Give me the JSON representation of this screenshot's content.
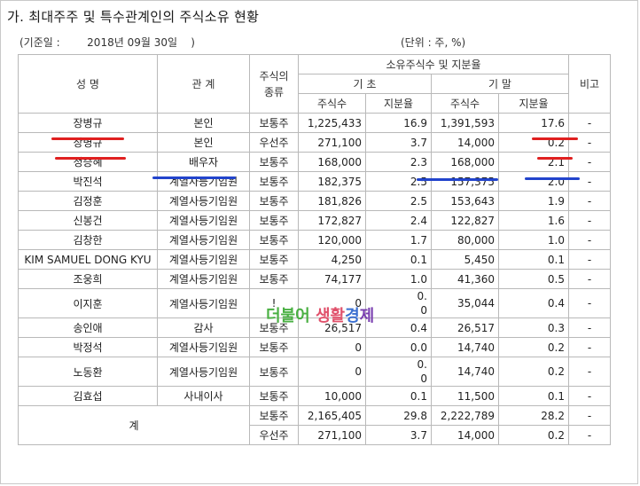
{
  "title": "가. 최대주주 및 특수관계인의 주식소유 현황",
  "base_date": "(기준일 :        2018년 09월 30일    )",
  "unit": "(단위 : 주, %)",
  "headers": {
    "name": "성 명",
    "relation": "관 계",
    "stock_type": "주식의\n종류",
    "holdings": "소유주식수 및 지분율",
    "beginning": "기 초",
    "ending": "기 말",
    "shares": "주식수",
    "ratio": "지분율",
    "note": "비고"
  },
  "rows": [
    {
      "name": "장병규",
      "relation": "본인",
      "type": "보통주",
      "b_shares": "1,225,433",
      "b_ratio": "16.9",
      "e_shares": "1,391,593",
      "e_ratio": "17.6",
      "note": "-"
    },
    {
      "name": "장병규",
      "relation": "본인",
      "type": "우선주",
      "b_shares": "271,100",
      "b_ratio": "3.7",
      "e_shares": "14,000",
      "e_ratio": "0.2",
      "note": "-"
    },
    {
      "name": "정승혜",
      "relation": "배우자",
      "type": "보통주",
      "b_shares": "168,000",
      "b_ratio": "2.3",
      "e_shares": "168,000",
      "e_ratio": "2.1",
      "note": "-"
    },
    {
      "name": "박진석",
      "relation": "계열사등기임원",
      "type": "보통주",
      "b_shares": "182,375",
      "b_ratio": "2.5",
      "e_shares": "157,375",
      "e_ratio": "2.0",
      "note": "-"
    },
    {
      "name": "김정훈",
      "relation": "계열사등기임원",
      "type": "보통주",
      "b_shares": "181,826",
      "b_ratio": "2.5",
      "e_shares": "153,643",
      "e_ratio": "1.9",
      "note": "-"
    },
    {
      "name": "신봉건",
      "relation": "계열사등기임원",
      "type": "보통주",
      "b_shares": "172,827",
      "b_ratio": "2.4",
      "e_shares": "122,827",
      "e_ratio": "1.6",
      "note": "-"
    },
    {
      "name": "김창한",
      "relation": "계열사등기임원",
      "type": "보통주",
      "b_shares": "120,000",
      "b_ratio": "1.7",
      "e_shares": "80,000",
      "e_ratio": "1.0",
      "note": "-"
    },
    {
      "name": "KIM SAMUEL DONG KYU",
      "relation": "계열사등기임원",
      "type": "보통주",
      "b_shares": "4,250",
      "b_ratio": "0.1",
      "e_shares": "5,450",
      "e_ratio": "0.1",
      "note": "-"
    },
    {
      "name": "조웅희",
      "relation": "계열사등기임원",
      "type": "보통주",
      "b_shares": "74,177",
      "b_ratio": "1.0",
      "e_shares": "41,360",
      "e_ratio": "0.5",
      "note": "-"
    },
    {
      "name": "이지훈",
      "relation": "계열사등기임원",
      "type": "!",
      "b_shares": "0",
      "b_ratio_top": "0.",
      "b_ratio_bottom": "0",
      "e_shares": "35,044",
      "e_ratio": "0.4",
      "note": "-",
      "tall": true
    },
    {
      "name": "송인애",
      "relation": "감사",
      "type": "보통주",
      "b_shares": "26,517",
      "b_ratio": "0.4",
      "e_shares": "26,517",
      "e_ratio": "0.3",
      "note": "-"
    },
    {
      "name": "박정석",
      "relation": "계열사등기임원",
      "type": "보통주",
      "b_shares": "0",
      "b_ratio": "0.0",
      "e_shares": "14,740",
      "e_ratio": "0.2",
      "note": "-"
    },
    {
      "name": "노동환",
      "relation": "계열사등기임원",
      "type": "보통주",
      "b_shares": "0",
      "b_ratio_top": "0.",
      "b_ratio_bottom": "0",
      "e_shares": "14,740",
      "e_ratio": "0.2",
      "note": "-",
      "tall": true
    },
    {
      "name": "김효섭",
      "relation": "사내이사",
      "type": "보통주",
      "b_shares": "10,000",
      "b_ratio": "0.1",
      "e_shares": "11,500",
      "e_ratio": "0.1",
      "note": "-"
    }
  ],
  "total": {
    "label": "계",
    "rows": [
      {
        "type": "보통주",
        "b_shares": "2,165,405",
        "b_ratio": "29.8",
        "e_shares": "2,222,789",
        "e_ratio": "28.2",
        "note": "-"
      },
      {
        "type": "우선주",
        "b_shares": "271,100",
        "b_ratio": "3.7",
        "e_shares": "14,000",
        "e_ratio": "0.2",
        "note": "-"
      }
    ]
  },
  "watermark": {
    "part1": "더불어",
    "part2": "생활",
    "part3": "경",
    "part4": "제"
  },
  "colors": {
    "pen_red": "#e02020",
    "pen_blue": "#2244cc",
    "border": "#b9b9b9"
  }
}
